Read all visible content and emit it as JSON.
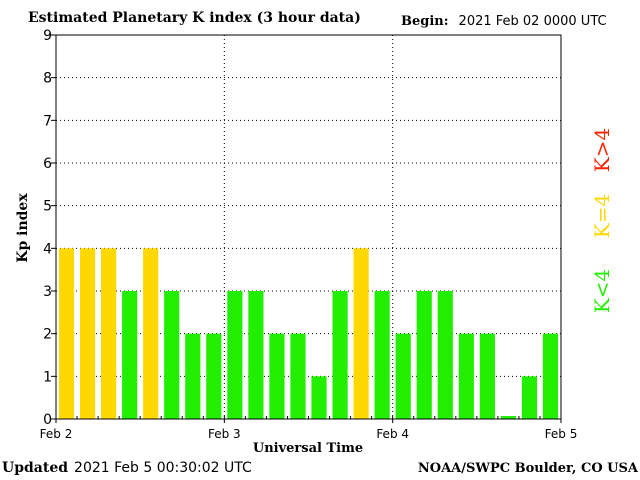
{
  "header": {
    "title": "Estimated Planetary K index (3 hour data)",
    "begin_label": "Begin:",
    "begin_value": "2021 Feb 02 0000 UTC"
  },
  "footer": {
    "updated_label": "Updated",
    "updated_value": "2021 Feb  5 00:30:02 UTC",
    "source": "NOAA/SWPC Boulder, CO USA"
  },
  "legend": {
    "above": {
      "label": "K>4",
      "color": "#ff2200"
    },
    "equal": {
      "label": "K=4",
      "color": "#ffd800"
    },
    "below": {
      "label": "K<4",
      "color": "#22ee00"
    }
  },
  "chart_data": {
    "type": "bar",
    "xlabel": "Universal Time",
    "ylabel": "Kp index",
    "ylim": [
      0,
      9
    ],
    "yticks": [
      0,
      1,
      2,
      3,
      4,
      5,
      6,
      7,
      8,
      9
    ],
    "xticks": [
      "Feb 2",
      "Feb 3",
      "Feb 4",
      "Feb 5"
    ],
    "bars_per_day": 8,
    "values": [
      4,
      4,
      4,
      3,
      4,
      3,
      2,
      2,
      3,
      3,
      2,
      2,
      1,
      3,
      4,
      3,
      2,
      3,
      3,
      2,
      2,
      0.07,
      1,
      2
    ],
    "grid": true,
    "colors": {
      "below_4": "#22ee00",
      "equal_4": "#ffd800",
      "above_4": "#ff2200"
    }
  }
}
